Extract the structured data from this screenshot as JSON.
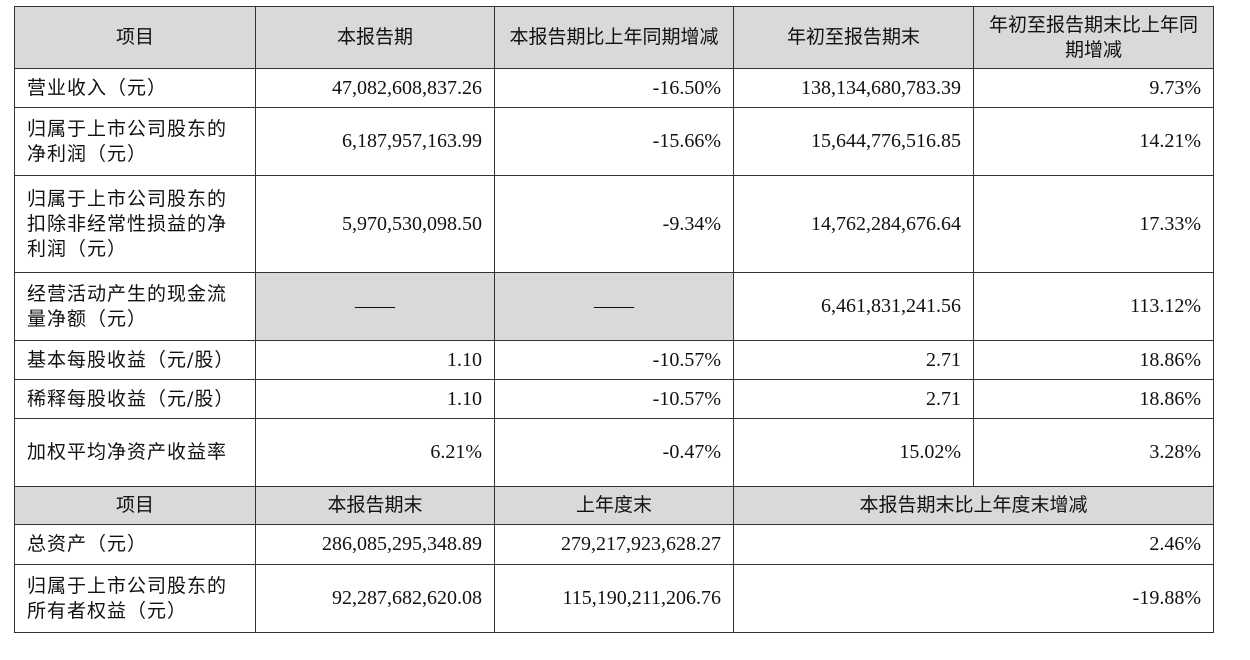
{
  "table": {
    "header": [
      "项目",
      "本报告期",
      "本报告期比上年同期增减",
      "年初至报告期末",
      "年初至报告期末比上年同期增减"
    ],
    "rows": [
      {
        "label": "营业收入（元）",
        "values": [
          "47,082,608,837.26",
          "-16.50%",
          "138,134,680,783.39",
          "9.73%"
        ]
      },
      {
        "label": "归属于上市公司股东的净利润（元）",
        "values": [
          "6,187,957,163.99",
          "-15.66%",
          "15,644,776,516.85",
          "14.21%"
        ]
      },
      {
        "label": "归属于上市公司股东的扣除非经常性损益的净利润（元）",
        "values": [
          "5,970,530,098.50",
          "-9.34%",
          "14,762,284,676.64",
          "17.33%"
        ]
      },
      {
        "label": "经营活动产生的现金流量净额（元）",
        "values": [
          "——",
          "——",
          "6,461,831,241.56",
          "113.12%"
        ]
      },
      {
        "label": "基本每股收益（元/股）",
        "values": [
          "1.10",
          "-10.57%",
          "2.71",
          "18.86%"
        ]
      },
      {
        "label": "稀释每股收益（元/股）",
        "values": [
          "1.10",
          "-10.57%",
          "2.71",
          "18.86%"
        ]
      },
      {
        "label": "加权平均净资产收益率",
        "values": [
          "6.21%",
          "-0.47%",
          "15.02%",
          "3.28%"
        ]
      }
    ],
    "header2": [
      "项目",
      "本报告期末",
      "上年度末",
      "本报告期末比上年度末增减"
    ],
    "rows2": [
      {
        "label": "总资产（元）",
        "values": [
          "286,085,295,348.89",
          "279,217,923,628.27",
          "2.46%"
        ]
      },
      {
        "label": "归属于上市公司股东的所有者权益（元）",
        "values": [
          "92,287,682,620.08",
          "115,190,211,206.76",
          "-19.88%"
        ]
      }
    ]
  }
}
